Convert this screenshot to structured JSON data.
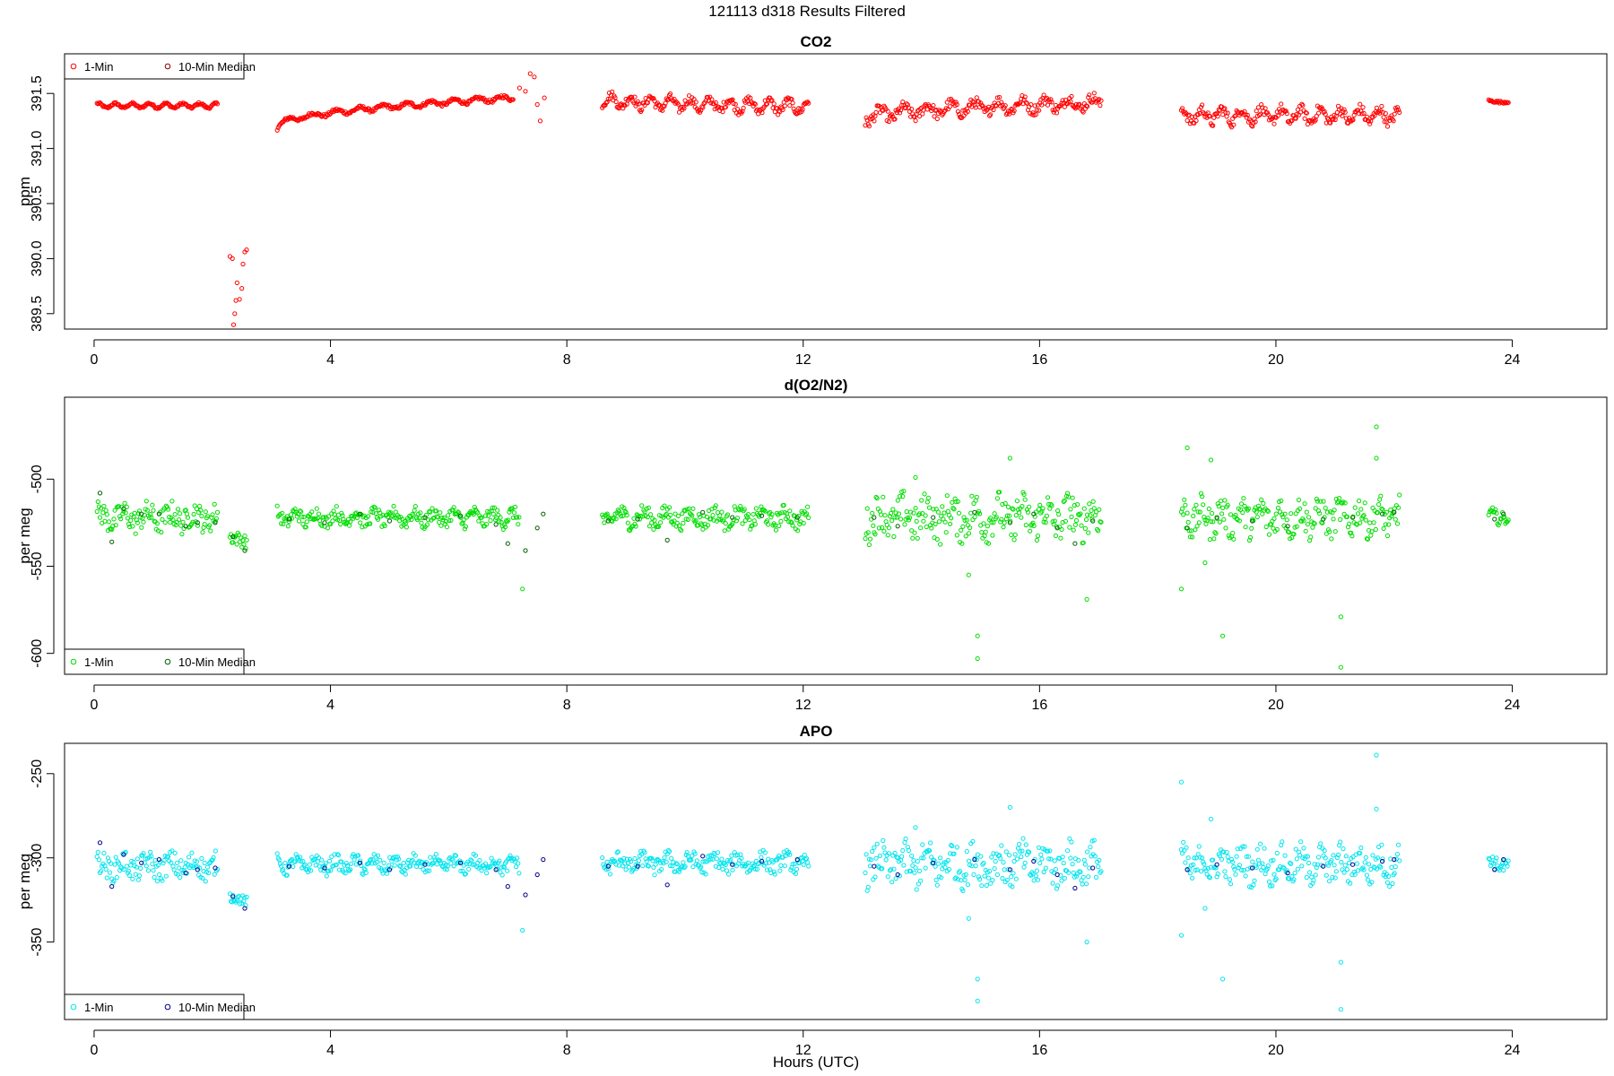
{
  "figure": {
    "title": "121113   d318   Results Filtered",
    "xlabel": "Hours (UTC)"
  },
  "legend_labels": {
    "one_min": "1-Min",
    "ten_min": "10-Min Median"
  },
  "chart_data": [
    {
      "type": "scatter",
      "title": "CO2",
      "ylabel": "ppm",
      "xlim": [
        -0.5,
        25.6
      ],
      "ylim": [
        389.36,
        391.86
      ],
      "x_ticks": [
        0,
        4,
        8,
        12,
        16,
        20,
        24
      ],
      "y_ticks": [
        389.5,
        390.0,
        390.5,
        391.0,
        391.5
      ],
      "y_tick_labels": [
        "389.5",
        "390.0",
        "390.5",
        "391.0",
        "391.5"
      ],
      "legend_position": "top-left",
      "colors": {
        "one_min": "#ff0000",
        "ten_min": "#8b0000"
      },
      "segments": [
        {
          "x0": 0.05,
          "x1": 2.1,
          "base": 391.39,
          "amp": 0.02,
          "noise": 0.01,
          "freq": 7
        },
        {
          "x0": 3.1,
          "x1": 7.1,
          "base": 391.2,
          "trend": 0.26,
          "amp": 0.02,
          "noise": 0.015,
          "freq": 5
        },
        {
          "x0": 8.6,
          "x1": 12.1,
          "base": 391.45,
          "trend": -0.07,
          "amp": 0.05,
          "noise": 0.04,
          "freq": 6
        },
        {
          "x0": 13.05,
          "x1": 17.05,
          "base": 391.27,
          "trend": 0.15,
          "amp": 0.05,
          "noise": 0.05,
          "freq": 5
        },
        {
          "x0": 18.4,
          "x1": 22.1,
          "base": 391.3,
          "amp": 0.06,
          "noise": 0.05,
          "freq": 6
        },
        {
          "x0": 23.6,
          "x1": 23.95,
          "base": 391.43,
          "amp": 0.01,
          "noise": 0.01,
          "freq": 3
        }
      ],
      "points": [
        [
          2.3,
          390.02
        ],
        [
          2.34,
          390.0
        ],
        [
          2.42,
          389.78
        ],
        [
          2.46,
          389.63
        ],
        [
          2.52,
          389.95
        ],
        [
          2.58,
          390.08
        ],
        [
          2.38,
          389.5
        ],
        [
          2.4,
          389.62
        ],
        [
          2.5,
          389.73
        ],
        [
          2.36,
          389.4
        ],
        [
          2.55,
          390.06
        ],
        [
          7.3,
          391.52
        ],
        [
          7.38,
          391.68
        ],
        [
          7.45,
          391.65
        ],
        [
          7.5,
          391.4
        ],
        [
          7.55,
          391.25
        ],
        [
          7.62,
          391.46
        ],
        [
          7.2,
          391.55
        ]
      ],
      "medians": []
    },
    {
      "type": "scatter",
      "title": "d(O2/N2)",
      "ylabel": "per meg",
      "xlim": [
        -0.5,
        25.6
      ],
      "ylim": [
        -612,
        -453
      ],
      "x_ticks": [
        0,
        4,
        8,
        12,
        16,
        20,
        24
      ],
      "y_ticks": [
        -600,
        -550,
        -500
      ],
      "y_tick_labels": [
        "-600",
        "-550",
        "-500"
      ],
      "legend_position": "bottom-left",
      "colors": {
        "one_min": "#00dd00",
        "ten_min": "#005f00"
      },
      "segments": [
        {
          "x0": 0.05,
          "x1": 2.1,
          "base": -522,
          "amp": 3,
          "noise": 7,
          "freq": 5
        },
        {
          "x0": 2.3,
          "x1": 2.6,
          "base": -535,
          "amp": 2,
          "noise": 4,
          "freq": 2
        },
        {
          "x0": 3.1,
          "x1": 7.2,
          "base": -522,
          "amp": 3,
          "noise": 4,
          "freq": 6
        },
        {
          "x0": 8.6,
          "x1": 12.1,
          "base": -522,
          "amp": 3,
          "noise": 5,
          "freq": 5
        },
        {
          "x0": 13.05,
          "x1": 17.05,
          "base": -522,
          "amp": 5,
          "noise": 11,
          "freq": 5
        },
        {
          "x0": 18.4,
          "x1": 22.1,
          "base": -522,
          "amp": 5,
          "noise": 9,
          "freq": 6
        },
        {
          "x0": 23.6,
          "x1": 23.95,
          "base": -520,
          "amp": 3,
          "noise": 4,
          "freq": 3
        }
      ],
      "points": [
        [
          14.95,
          -590
        ],
        [
          14.95,
          -603
        ],
        [
          19.1,
          -590
        ],
        [
          21.1,
          -579
        ],
        [
          21.1,
          -608
        ],
        [
          21.7,
          -470
        ],
        [
          18.5,
          -482
        ],
        [
          21.7,
          -488
        ],
        [
          18.9,
          -489
        ],
        [
          7.25,
          -563
        ],
        [
          18.4,
          -563
        ],
        [
          16.8,
          -569
        ],
        [
          15.5,
          -488
        ],
        [
          13.9,
          -499
        ],
        [
          14.8,
          -555
        ],
        [
          18.8,
          -548
        ]
      ],
      "medians": [
        [
          0.1,
          -508
        ],
        [
          0.3,
          -536
        ],
        [
          0.5,
          -517
        ],
        [
          0.8,
          -520
        ],
        [
          1.1,
          -520
        ],
        [
          1.55,
          -527
        ],
        [
          1.75,
          -525
        ],
        [
          2.05,
          -525
        ],
        [
          2.35,
          -533
        ],
        [
          2.55,
          -541
        ],
        [
          3.3,
          -523
        ],
        [
          3.9,
          -525
        ],
        [
          4.5,
          -520
        ],
        [
          5.0,
          -524
        ],
        [
          5.6,
          -522
        ],
        [
          6.2,
          -521
        ],
        [
          6.8,
          -526
        ],
        [
          7.0,
          -537
        ],
        [
          7.3,
          -541
        ],
        [
          7.5,
          -528
        ],
        [
          7.6,
          -520
        ],
        [
          8.7,
          -524
        ],
        [
          9.2,
          -523
        ],
        [
          9.7,
          -535
        ],
        [
          10.3,
          -519
        ],
        [
          10.8,
          -522
        ],
        [
          11.3,
          -521
        ],
        [
          11.9,
          -522
        ],
        [
          13.2,
          -522
        ],
        [
          13.6,
          -527
        ],
        [
          14.2,
          -522
        ],
        [
          14.9,
          -519
        ],
        [
          15.5,
          -525
        ],
        [
          15.9,
          -520
        ],
        [
          16.3,
          -528
        ],
        [
          16.6,
          -537
        ],
        [
          16.9,
          -524
        ],
        [
          18.5,
          -528
        ],
        [
          19.0,
          -522
        ],
        [
          19.6,
          -524
        ],
        [
          20.2,
          -527
        ],
        [
          20.8,
          -523
        ],
        [
          21.3,
          -522
        ],
        [
          21.8,
          -520
        ],
        [
          22.0,
          -519
        ],
        [
          23.7,
          -523
        ],
        [
          23.85,
          -520
        ]
      ]
    },
    {
      "type": "scatter",
      "title": "APO",
      "ylabel": "per meg",
      "xlim": [
        -0.5,
        25.6
      ],
      "ylim": [
        -396,
        -232
      ],
      "x_ticks": [
        0,
        4,
        8,
        12,
        16,
        20,
        24
      ],
      "y_ticks": [
        -350,
        -300,
        -250
      ],
      "y_tick_labels": [
        "-350",
        "-300",
        "-250"
      ],
      "legend_position": "bottom-left",
      "colors": {
        "one_min": "#00e5ee",
        "ten_min": "#00008b"
      },
      "segments": [
        {
          "x0": 0.05,
          "x1": 2.1,
          "base": -305,
          "amp": 3,
          "noise": 7,
          "freq": 5
        },
        {
          "x0": 2.3,
          "x1": 2.6,
          "base": -325,
          "amp": 2,
          "noise": 3,
          "freq": 2
        },
        {
          "x0": 3.1,
          "x1": 7.2,
          "base": -304,
          "amp": 3,
          "noise": 4,
          "freq": 6
        },
        {
          "x0": 8.6,
          "x1": 12.1,
          "base": -303,
          "amp": 3,
          "noise": 5,
          "freq": 5
        },
        {
          "x0": 13.05,
          "x1": 17.05,
          "base": -304,
          "amp": 5,
          "noise": 11,
          "freq": 5
        },
        {
          "x0": 18.4,
          "x1": 22.1,
          "base": -304,
          "amp": 5,
          "noise": 9,
          "freq": 6
        },
        {
          "x0": 23.6,
          "x1": 23.95,
          "base": -302,
          "amp": 3,
          "noise": 4,
          "freq": 3
        }
      ],
      "points": [
        [
          14.95,
          -372
        ],
        [
          14.95,
          -385
        ],
        [
          19.1,
          -372
        ],
        [
          21.1,
          -362
        ],
        [
          21.1,
          -390
        ],
        [
          21.7,
          -239
        ],
        [
          18.4,
          -255
        ],
        [
          21.7,
          -271
        ],
        [
          18.9,
          -277
        ],
        [
          7.25,
          -343
        ],
        [
          18.4,
          -346
        ],
        [
          16.8,
          -350
        ],
        [
          15.5,
          -270
        ],
        [
          13.9,
          -282
        ],
        [
          14.8,
          -336
        ],
        [
          18.8,
          -330
        ]
      ],
      "medians": [
        [
          0.1,
          -291
        ],
        [
          0.3,
          -317
        ],
        [
          0.5,
          -298
        ],
        [
          0.8,
          -303
        ],
        [
          1.1,
          -301
        ],
        [
          1.55,
          -309
        ],
        [
          1.75,
          -307
        ],
        [
          2.05,
          -306
        ],
        [
          2.35,
          -323
        ],
        [
          2.55,
          -330
        ],
        [
          3.3,
          -305
        ],
        [
          3.9,
          -306
        ],
        [
          4.5,
          -303
        ],
        [
          5.0,
          -307
        ],
        [
          5.6,
          -304
        ],
        [
          6.2,
          -303
        ],
        [
          6.8,
          -307
        ],
        [
          7.0,
          -317
        ],
        [
          7.3,
          -322
        ],
        [
          7.5,
          -310
        ],
        [
          7.6,
          -301
        ],
        [
          8.7,
          -305
        ],
        [
          9.2,
          -305
        ],
        [
          9.7,
          -316
        ],
        [
          10.3,
          -299
        ],
        [
          10.8,
          -304
        ],
        [
          11.3,
          -302
        ],
        [
          11.9,
          -301
        ],
        [
          13.2,
          -305
        ],
        [
          13.6,
          -310
        ],
        [
          14.2,
          -303
        ],
        [
          14.9,
          -301
        ],
        [
          15.5,
          -307
        ],
        [
          15.9,
          -302
        ],
        [
          16.3,
          -310
        ],
        [
          16.6,
          -318
        ],
        [
          16.9,
          -306
        ],
        [
          18.5,
          -307
        ],
        [
          19.0,
          -304
        ],
        [
          19.6,
          -306
        ],
        [
          20.2,
          -309
        ],
        [
          20.8,
          -305
        ],
        [
          21.3,
          -304
        ],
        [
          21.8,
          -302
        ],
        [
          22.0,
          -301
        ],
        [
          23.7,
          -307
        ],
        [
          23.85,
          -301
        ]
      ]
    }
  ]
}
